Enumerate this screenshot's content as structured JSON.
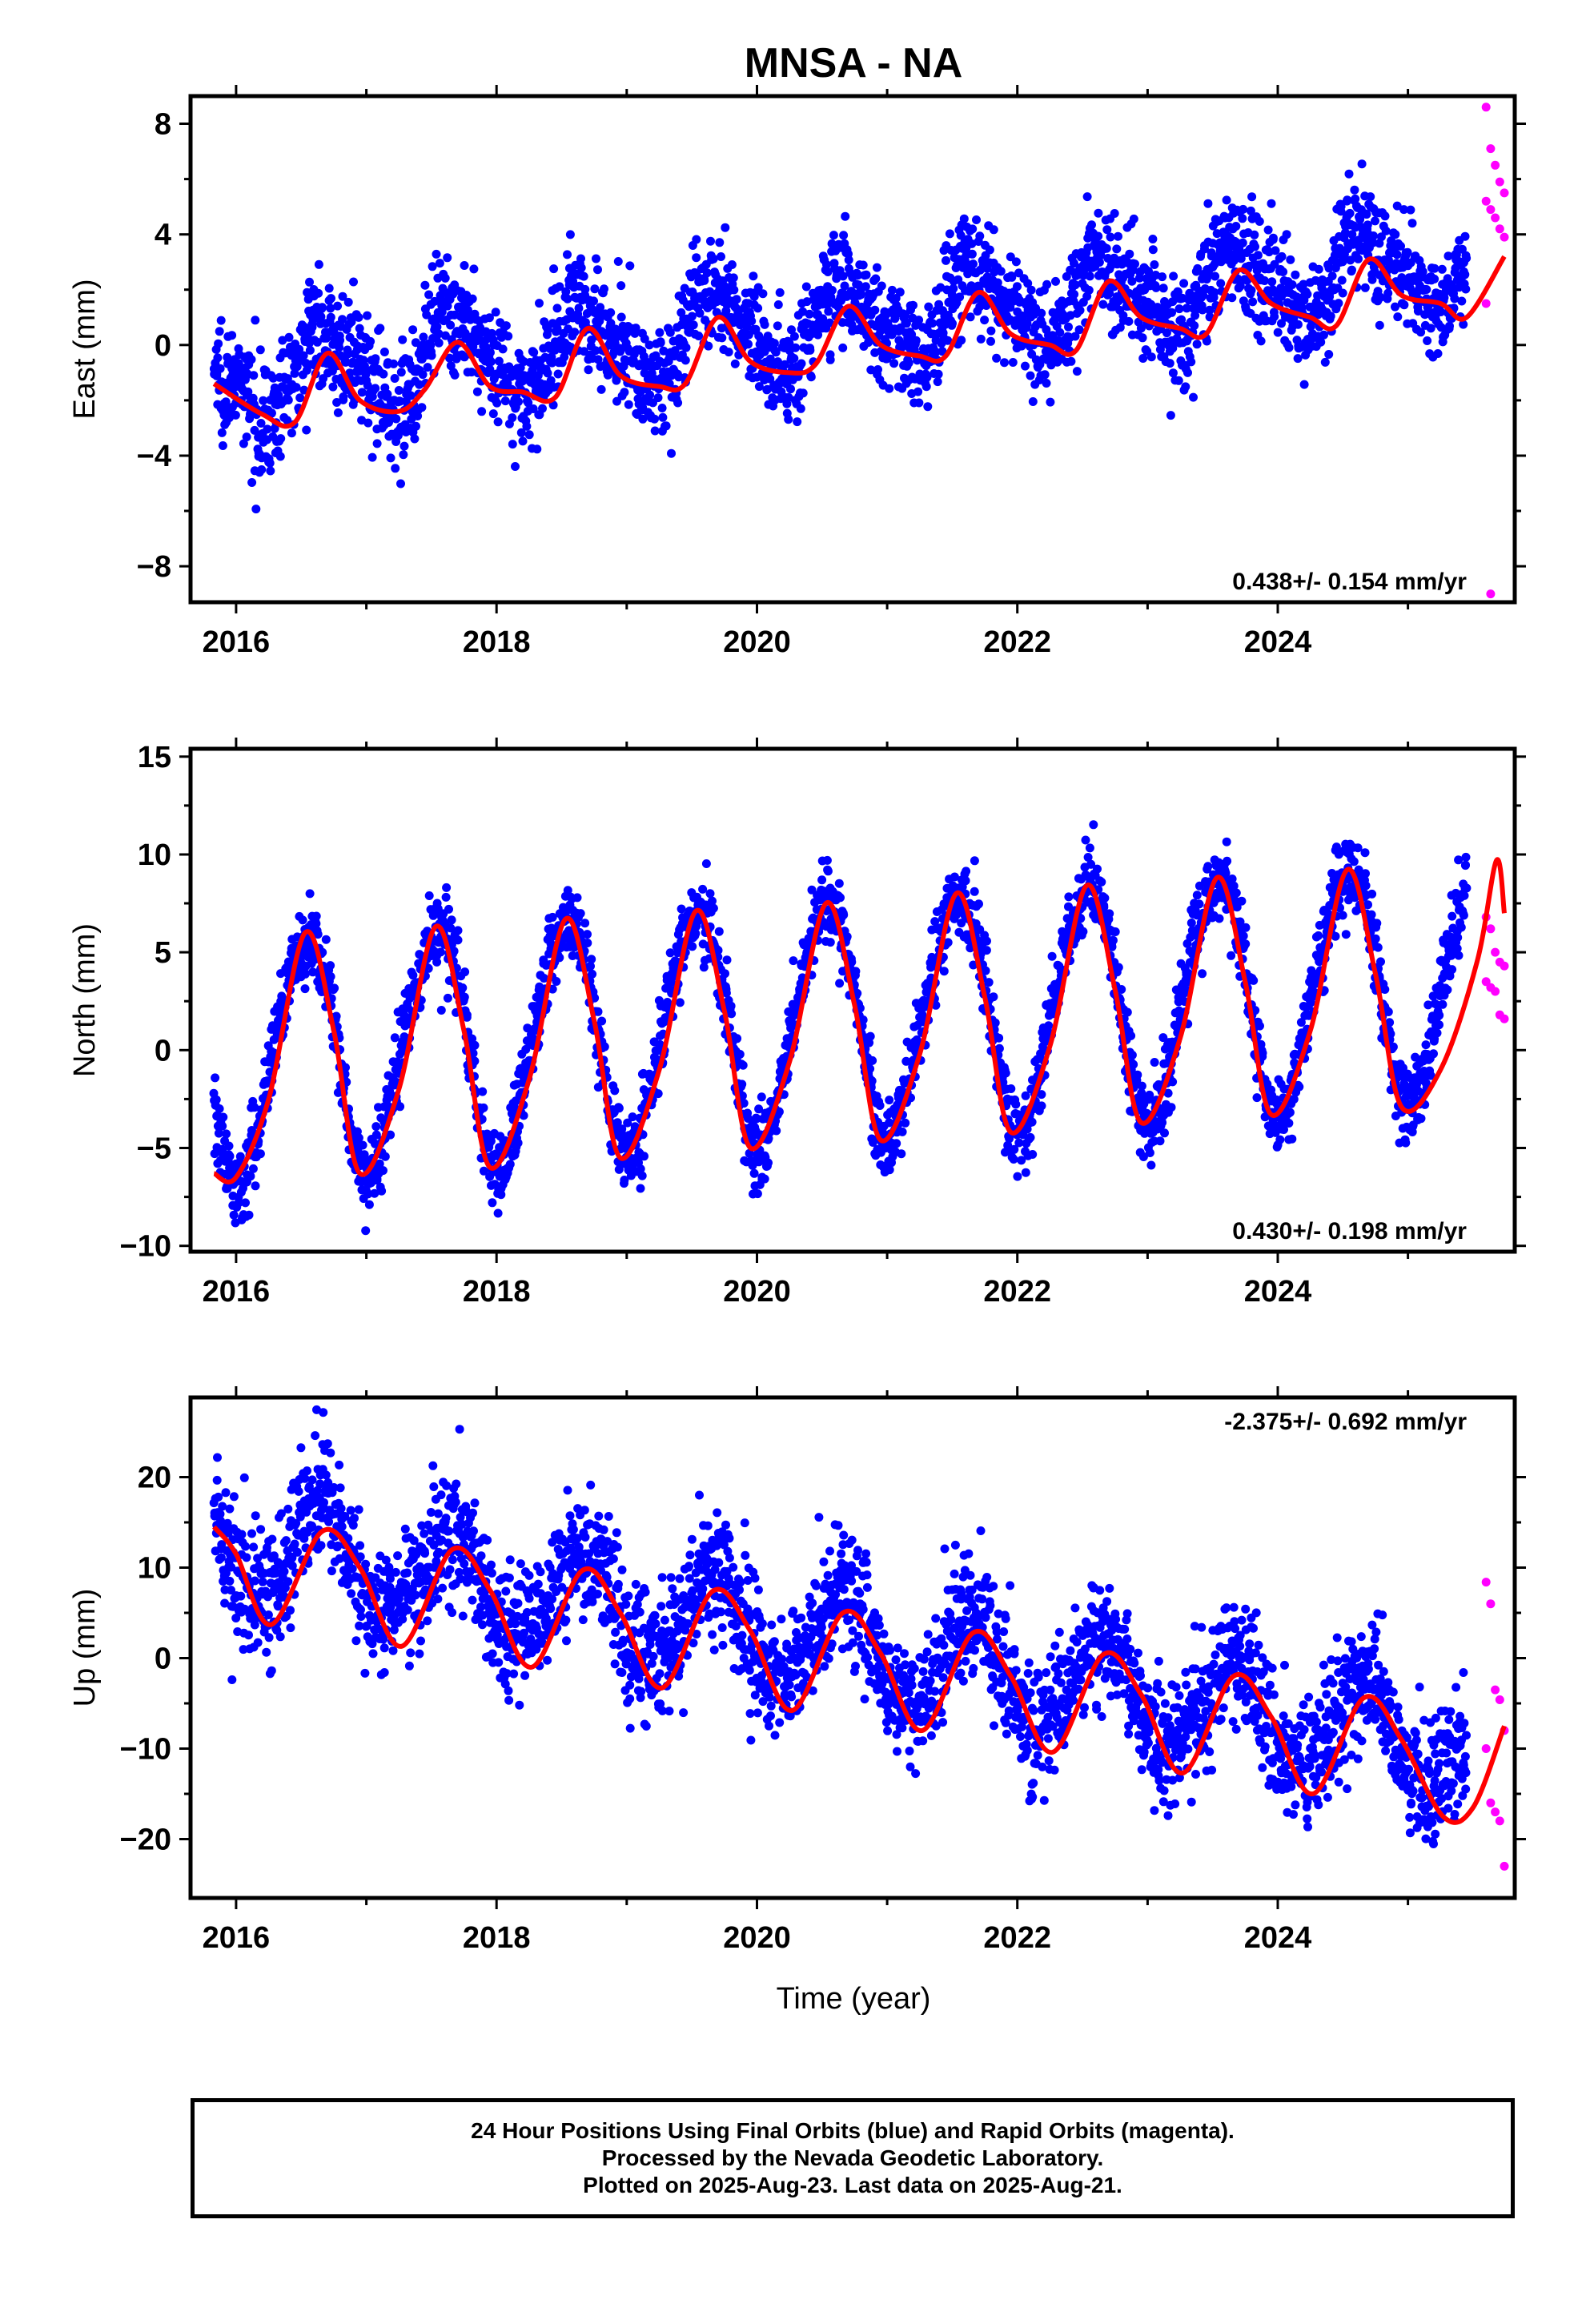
{
  "title": "MNSA - NA",
  "xlabel": "Time (year)",
  "x_ticks": [
    2016,
    2018,
    2020,
    2022,
    2024
  ],
  "colors": {
    "final": "#0000ff",
    "rapid": "#ff00ff",
    "model": "#ff0000",
    "axes": "#000000"
  },
  "chart_data": [
    {
      "type": "scatter",
      "component": "east",
      "ylabel": "East (mm)",
      "xlim": [
        2015.65,
        2025.82
      ],
      "ylim": [
        -9.3,
        9.0
      ],
      "y_ticks": [
        -8,
        -4,
        0,
        4,
        8
      ],
      "rate_label": "0.438+/- 0.154 mm/yr",
      "rate_position": "bottom-right",
      "series": [
        {
          "name": "Final Orbits",
          "color": "#0000ff",
          "rate": 0.438,
          "offset": -1.3,
          "t0": 2015.83,
          "t1": 2025.45,
          "annual": {
            "amp": 1.4,
            "peak": 0.68
          },
          "semiannual": {
            "amp": 0.4,
            "peak": 0.55
          },
          "scatter": 1.0,
          "n": 2900
        },
        {
          "name": "Rapid Orbits",
          "color": "#ff00ff",
          "x_range": [
            2025.6,
            2025.74
          ],
          "values": [
            8.6,
            7.1,
            6.5,
            5.9,
            5.5,
            5.2,
            4.9,
            4.6,
            4.2,
            3.9,
            1.5,
            -9.0
          ]
        }
      ],
      "model_curve": {
        "color": "#ff0000",
        "x": [
          2015.83,
          2016.2,
          2016.45,
          2016.7,
          2016.95,
          2017.25,
          2017.45,
          2017.7,
          2017.95,
          2018.2,
          2018.45,
          2018.7,
          2018.95,
          2019.25,
          2019.45,
          2019.7,
          2019.95,
          2020.25,
          2020.45,
          2020.7,
          2020.95,
          2021.25,
          2021.45,
          2021.7,
          2021.95,
          2022.25,
          2022.45,
          2022.7,
          2022.95,
          2023.25,
          2023.45,
          2023.7,
          2023.95,
          2024.25,
          2024.45,
          2024.7,
          2024.95,
          2025.25,
          2025.45,
          2025.74
        ],
        "y": [
          -1.4,
          -2.5,
          -2.8,
          -0.3,
          -2.0,
          -2.4,
          -1.6,
          0.1,
          -1.5,
          -1.7,
          -1.9,
          0.6,
          -1.1,
          -1.5,
          -1.4,
          1.0,
          -0.6,
          -1.0,
          -0.7,
          1.4,
          0.0,
          -0.4,
          -0.4,
          1.9,
          0.4,
          0.0,
          -0.2,
          2.3,
          1.0,
          0.6,
          0.4,
          2.7,
          1.5,
          1.0,
          0.7,
          3.1,
          1.8,
          1.5,
          1.0,
          3.2
        ]
      }
    },
    {
      "type": "scatter",
      "component": "north",
      "ylabel": "North (mm)",
      "xlim": [
        2015.65,
        2025.82
      ],
      "ylim": [
        -10.3,
        15.4
      ],
      "y_ticks": [
        -10,
        -5,
        0,
        5,
        10,
        15
      ],
      "rate_label": "0.430+/- 0.198 mm/yr",
      "rate_position": "bottom-right",
      "series": [
        {
          "name": "Final Orbits",
          "color": "#0000ff",
          "rate": 0.43,
          "offset": -0.5,
          "t0": 2015.83,
          "t1": 2025.45,
          "annual": {
            "amp": 6.0,
            "peak": 0.53
          },
          "semiannual": {
            "amp": 0.6,
            "peak": 0.2
          },
          "scatter": 1.0,
          "n": 2900
        },
        {
          "name": "Rapid Orbits",
          "color": "#ff00ff",
          "x_range": [
            2025.6,
            2025.74
          ],
          "values": [
            6.8,
            6.2,
            5.0,
            4.5,
            4.3,
            3.5,
            3.2,
            3.0,
            1.8,
            1.6
          ]
        }
      ],
      "model_curve": {
        "color": "#ff0000",
        "x": [
          2015.83,
          2016.0,
          2016.25,
          2016.53,
          2016.75,
          2016.95,
          2017.25,
          2017.53,
          2017.75,
          2017.95,
          2018.25,
          2018.53,
          2018.75,
          2018.95,
          2019.25,
          2019.53,
          2019.75,
          2019.95,
          2020.25,
          2020.53,
          2020.75,
          2020.95,
          2021.25,
          2021.53,
          2021.75,
          2021.95,
          2022.25,
          2022.53,
          2022.75,
          2022.95,
          2023.25,
          2023.53,
          2023.75,
          2023.95,
          2024.25,
          2024.53,
          2024.75,
          2024.95,
          2025.25,
          2025.53,
          2025.68,
          2025.74
        ],
        "y": [
          -6.3,
          -6.5,
          -2.5,
          6.0,
          1.0,
          -6.3,
          -2.0,
          6.3,
          1.0,
          -6.0,
          -1.5,
          6.7,
          1.5,
          -5.5,
          -1.0,
          7.1,
          2.0,
          -5.0,
          -0.6,
          7.5,
          2.3,
          -4.6,
          -0.2,
          8.0,
          2.7,
          -4.2,
          0.2,
          8.4,
          3.1,
          -3.7,
          0.6,
          8.8,
          3.5,
          -3.3,
          1.0,
          9.2,
          3.9,
          -2.9,
          -1.0,
          4.5,
          9.7,
          7.0
        ]
      }
    },
    {
      "type": "scatter",
      "component": "up",
      "ylabel": "Up (mm)",
      "xlim": [
        2015.65,
        2025.82
      ],
      "ylim": [
        -26.5,
        28.8
      ],
      "y_ticks": [
        -20,
        -10,
        0,
        10,
        20
      ],
      "rate_label": "-2.375+/- 0.692 mm/yr",
      "rate_position": "top-right",
      "series": [
        {
          "name": "Final Orbits",
          "color": "#0000ff",
          "rate": -2.375,
          "offset": 13.0,
          "t0": 2015.83,
          "t1": 2025.45,
          "annual": {
            "amp": 5.5,
            "peak": 0.66
          },
          "semiannual": {
            "amp": 0.5,
            "peak": 0.2
          },
          "scatter": 3.5,
          "n": 2900
        },
        {
          "name": "Rapid Orbits",
          "color": "#ff00ff",
          "x_range": [
            2025.6,
            2025.74
          ],
          "values": [
            8.4,
            6.0,
            -3.5,
            -4.6,
            -8.0,
            -10.0,
            -16.0,
            -17.0,
            -18.0,
            -23.0
          ]
        }
      ],
      "model_curve": {
        "color": "#ff0000",
        "x": [
          2015.83,
          2016.0,
          2016.27,
          2016.66,
          2016.95,
          2017.27,
          2017.66,
          2017.95,
          2018.27,
          2018.66,
          2018.95,
          2019.27,
          2019.66,
          2019.95,
          2020.27,
          2020.66,
          2020.95,
          2021.27,
          2021.66,
          2021.95,
          2022.27,
          2022.66,
          2022.95,
          2023.27,
          2023.66,
          2023.95,
          2024.27,
          2024.66,
          2024.95,
          2025.27,
          2025.5,
          2025.74
        ],
        "y": [
          14.5,
          11.5,
          3.7,
          14.0,
          10.0,
          1.3,
          12.0,
          7.5,
          -1.0,
          9.7,
          5.0,
          -3.3,
          7.4,
          3.0,
          -5.8,
          5.0,
          0.5,
          -8.0,
          2.8,
          -2.0,
          -10.4,
          0.4,
          -4.0,
          -12.7,
          -2.0,
          -6.5,
          -15.0,
          -4.4,
          -9.0,
          -17.5,
          -16.5,
          -7.5
        ]
      }
    }
  ],
  "caption": {
    "line1": "24 Hour Positions Using Final Orbits (blue) and Rapid Orbits (magenta).",
    "line2": "Processed by the Nevada Geodetic Laboratory.",
    "line3": "Plotted on 2025-Aug-23. Last data on 2025-Aug-21."
  }
}
